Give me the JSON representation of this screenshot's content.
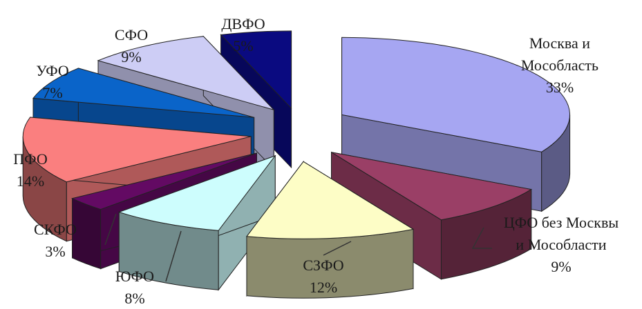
{
  "chart_data": {
    "type": "pie",
    "style": "3d-exploded",
    "slices": [
      {
        "label_lines": [
          "Москва и",
          "Мособласть"
        ],
        "value": 33,
        "value_text": "33%",
        "color": "#a6a6f2"
      },
      {
        "label_lines": [
          "ЦФО без Москвы",
          "и Мособласти"
        ],
        "value": 9,
        "value_text": "9%",
        "color": "#9a3f66"
      },
      {
        "label_lines": [
          "СЗФО"
        ],
        "value": 12,
        "value_text": "12%",
        "color": "#fdfdc6"
      },
      {
        "label_lines": [
          "ЮФО"
        ],
        "value": 8,
        "value_text": "8%",
        "color": "#cdfdfd"
      },
      {
        "label_lines": [
          "СКФО"
        ],
        "value": 3,
        "value_text": "3%",
        "color": "#630a63"
      },
      {
        "label_lines": [
          "ПФО"
        ],
        "value": 14,
        "value_text": "14%",
        "color": "#fa7f7f"
      },
      {
        "label_lines": [
          "УФО"
        ],
        "value": 7,
        "value_text": "7%",
        "color": "#0a64c9"
      },
      {
        "label_lines": [
          "СФО"
        ],
        "value": 9,
        "value_text": "9%",
        "color": "#cdcdf5"
      },
      {
        "label_lines": [
          "ДВФО"
        ],
        "value": 5,
        "value_text": "5%",
        "color": "#0a0a80"
      }
    ]
  }
}
